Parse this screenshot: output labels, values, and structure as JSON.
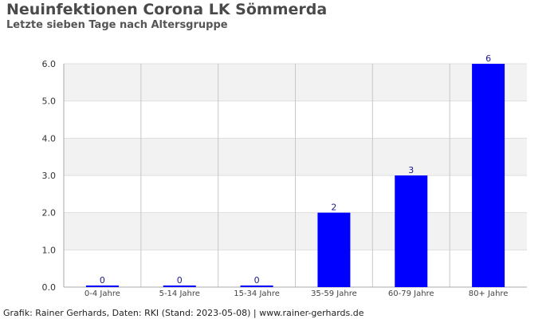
{
  "title": "Neuinfektionen Corona LK Sömmerda",
  "subtitle": "Letzte sieben Tage nach Altersgruppe",
  "footer": "Grafik: Rainer Gerhards, Daten: RKI (Stand: 2023-05-08) | www.rainer-gerhards.de",
  "chart_data": {
    "type": "bar",
    "title": "Neuinfektionen Corona LK Sömmerda",
    "subtitle": "Letzte sieben Tage nach Altersgruppe",
    "categories": [
      "0-4 Jahre",
      "5-14 Jahre",
      "15-34 Jahre",
      "35-59 Jahre",
      "60-79 Jahre",
      "80+ Jahre"
    ],
    "values": [
      0,
      0,
      0,
      2,
      3,
      6
    ],
    "data_labels": [
      "0",
      "0",
      "0",
      "2",
      "3",
      "6"
    ],
    "ylim": [
      0,
      6
    ],
    "yticks": [
      "0.0",
      "1.0",
      "2.0",
      "3.0",
      "4.0",
      "5.0",
      "6.0"
    ],
    "grid": true,
    "bar_color": "#0000ff",
    "band_color": "#f2f2f2",
    "grid_color": "#c8c8c8"
  }
}
